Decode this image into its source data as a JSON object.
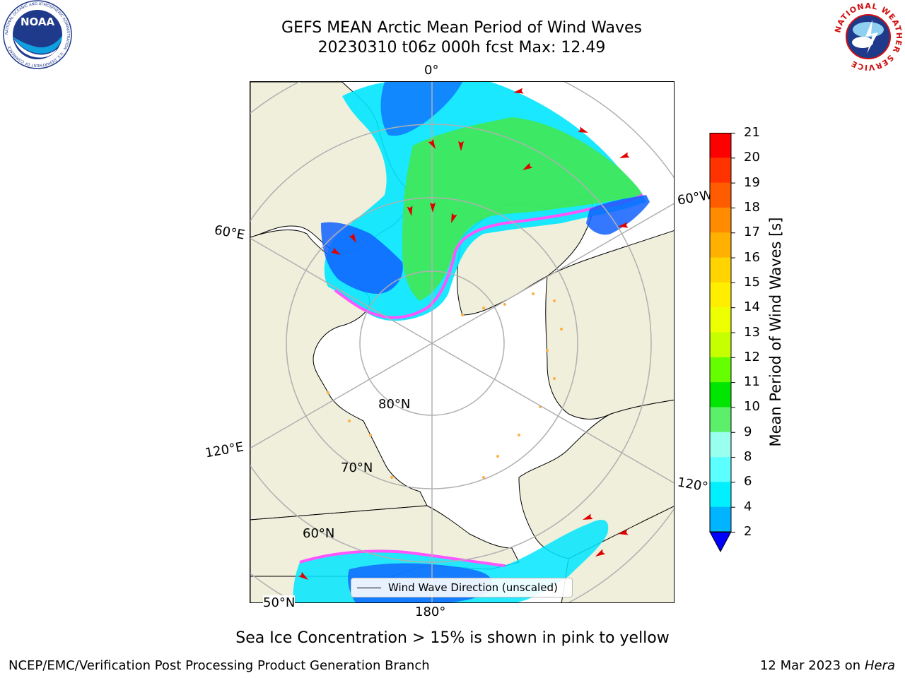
{
  "header": {
    "title_line1": "GEFS MEAN Arctic Mean Period of Wind Waves",
    "title_line2": "20230310 t06z 000h fcst   Max: 12.49"
  },
  "logos": {
    "left": {
      "name": "NOAA",
      "text": "NOAA",
      "ring_text": "NATIONAL OCEANIC AND ATMOSPHERIC ADMINISTRATION · U.S. DEPARTMENT OF COMMERCE"
    },
    "right": {
      "name": "National Weather Service",
      "ring_text": "NATIONAL WEATHER SERVICE"
    }
  },
  "map": {
    "land_color": "#efefdc",
    "coast_color": "#000000",
    "grid_color": "#b0b0b0",
    "latitude_labels": [
      "80°N",
      "70°N",
      "60°N",
      "50°N"
    ],
    "longitude_labels": [
      "0°",
      "60°E",
      "120°E",
      "180°",
      "120°",
      "60°W"
    ]
  },
  "legend": {
    "label": "Wind Wave Direction (unscaled)",
    "arrow_color": "#e00000"
  },
  "colorbar": {
    "title": "Mean Period of Wind Waves [s]",
    "ticks": [
      "21",
      "20",
      "19",
      "18",
      "17",
      "16",
      "15",
      "14",
      "13",
      "12",
      "11",
      "10",
      "9",
      "8",
      "6",
      "4",
      "2"
    ],
    "colors": [
      "#ff0000",
      "#ff3300",
      "#ff5c00",
      "#ff8c00",
      "#ffb000",
      "#ffd400",
      "#ffee00",
      "#eeff00",
      "#c6ff00",
      "#66ff00",
      "#00e600",
      "#5cf06a",
      "#99ffee",
      "#5cffff",
      "#00f0ff",
      "#00b4ff",
      "#0066ff"
    ],
    "extend_color": "#0000ff"
  },
  "subtitle": "Sea Ice Concentration > 15% is shown in pink to yellow",
  "footer": {
    "left": "NCEP/EMC/Verification Post Processing Product Generation Branch",
    "right_date": "12 Mar 2023 on",
    "right_host": "Hera"
  }
}
